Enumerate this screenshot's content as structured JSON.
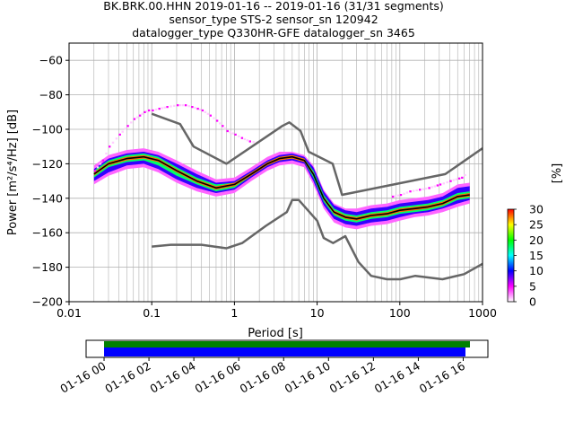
{
  "title_lines": [
    "BK.BRK.00.HHN   2019-01-16 -- 2019-01-16  (31/31 segments)",
    "sensor_type STS-2 sensor_sn 120942",
    "datalogger_type Q330HR-GFE datalogger_sn 3465"
  ],
  "chart_data": [
    {
      "type": "heatmap",
      "subtype": "probabilistic-power-spectral-density",
      "xlabel": "Period [s]",
      "ylabel": "Power [m²/s⁴/Hz] [dB]",
      "xscale": "log",
      "xlim": [
        0.01,
        1000
      ],
      "ylim": [
        -200,
        -50
      ],
      "xticks": [
        0.01,
        0.1,
        1,
        10,
        100,
        1000
      ],
      "xtick_labels": [
        "0.01",
        "0.1",
        "1",
        "10",
        "100",
        "1000"
      ],
      "yticks": [
        -200,
        -180,
        -160,
        -140,
        -120,
        -100,
        -80,
        -60
      ],
      "ytick_labels": [
        "−200",
        "−180",
        "−160",
        "−140",
        "−120",
        "−100",
        "−80",
        "−60"
      ],
      "grid": true,
      "colorbar": {
        "label": "[%]",
        "min": 0,
        "max": 30,
        "ticks": [
          0,
          5,
          10,
          15,
          20,
          25,
          30
        ],
        "colors": [
          "#ffffff",
          "#ff00ff",
          "#0000ff",
          "#00ffff",
          "#00ff00",
          "#ffff00",
          "#ff0000"
        ]
      },
      "series": [
        {
          "role": "high-noise-model",
          "color": "#666666",
          "x": [
            0.1,
            0.22,
            0.32,
            0.8,
            3.8,
            4.6,
            6.3,
            7.9,
            15.4,
            20,
            354.8,
            1000
          ],
          "y": [
            -91,
            -97,
            -110,
            -120,
            -98,
            -96,
            -101,
            -113,
            -120,
            -138,
            -126,
            -111
          ]
        },
        {
          "role": "low-noise-model",
          "color": "#666666",
          "x": [
            0.1,
            0.17,
            0.4,
            0.8,
            1.24,
            2.4,
            4.3,
            5,
            6,
            10,
            12,
            15.6,
            21.9,
            31.6,
            45,
            70,
            101,
            154,
            328,
            600,
            1000
          ],
          "y": [
            -168,
            -167,
            -167,
            -169,
            -166,
            -156,
            -148,
            -141,
            -141,
            -153,
            -163,
            -166,
            -162,
            -177,
            -185,
            -187,
            -187,
            -185,
            -187,
            -184,
            -178
          ]
        },
        {
          "role": "mode",
          "color": "#000000",
          "x": [
            0.02,
            0.03,
            0.05,
            0.08,
            0.12,
            0.2,
            0.35,
            0.6,
            1,
            1.6,
            2.5,
            3.5,
            5,
            7,
            9,
            12,
            16,
            22,
            30,
            45,
            70,
            100,
            150,
            220,
            330,
            500,
            700
          ],
          "y": [
            -126,
            -120,
            -117,
            -116,
            -118,
            -124,
            -130,
            -134,
            -132,
            -126,
            -120,
            -117,
            -116,
            -118,
            -126,
            -140,
            -148,
            -151,
            -152,
            -150,
            -149,
            -147,
            -146,
            -145,
            -143,
            -139,
            -138
          ]
        }
      ],
      "density_bands": [
        {
          "x": [
            0.02,
            0.03,
            0.05,
            0.08,
            0.12,
            0.2,
            0.35,
            0.6,
            1,
            1.6,
            2.5,
            3.5,
            5,
            7,
            9,
            12,
            16,
            22,
            30,
            45,
            70,
            100,
            150,
            220,
            330,
            500,
            700
          ],
          "low": [
            -132,
            -127,
            -123,
            -122,
            -125,
            -131,
            -136,
            -139,
            -137,
            -130,
            -124,
            -121,
            -120,
            -122,
            -132,
            -146,
            -154,
            -157,
            -158,
            -156,
            -155,
            -153,
            -151,
            -150,
            -148,
            -145,
            -143
          ],
          "high": [
            -121,
            -115,
            -112,
            -111,
            -113,
            -118,
            -124,
            -129,
            -128,
            -122,
            -116,
            -113,
            -113,
            -115,
            -121,
            -135,
            -143,
            -146,
            -146,
            -144,
            -143,
            -141,
            -140,
            -139,
            -137,
            -132,
            -131
          ],
          "percent": 3
        },
        {
          "x": [
            0.02,
            0.03,
            0.05,
            0.08,
            0.12,
            0.2,
            0.35,
            0.6,
            1,
            1.6,
            2.5,
            3.5,
            5,
            7,
            9,
            12,
            16,
            22,
            30,
            45,
            70,
            100,
            150,
            220,
            330,
            500,
            700
          ],
          "low": [
            -130,
            -125,
            -121,
            -120,
            -123,
            -129,
            -134,
            -137,
            -135,
            -128,
            -122,
            -119,
            -118,
            -120,
            -130,
            -144,
            -152,
            -155,
            -156,
            -154,
            -153,
            -151,
            -149,
            -148,
            -146,
            -143,
            -141
          ],
          "high": [
            -123,
            -117,
            -114,
            -113,
            -115,
            -120,
            -126,
            -131,
            -130,
            -124,
            -118,
            -115,
            -114,
            -116,
            -122,
            -136,
            -144,
            -147,
            -148,
            -146,
            -145,
            -143,
            -142,
            -141,
            -139,
            -134,
            -133
          ],
          "percent": 9
        },
        {
          "x": [
            0.02,
            0.03,
            0.05,
            0.08,
            0.12,
            0.2,
            0.35,
            0.6,
            1,
            1.6,
            2.5,
            3.5,
            5,
            7,
            9,
            12,
            16,
            22,
            30,
            45,
            70,
            100,
            150,
            220,
            330,
            500,
            700
          ],
          "low": [
            -128,
            -122,
            -119,
            -118,
            -121,
            -127,
            -132,
            -136,
            -134,
            -127,
            -121,
            -118,
            -117,
            -119,
            -128,
            -142,
            -150,
            -153,
            -154,
            -152,
            -151,
            -149,
            -148,
            -147,
            -145,
            -141,
            -140
          ],
          "high": [
            -124,
            -118,
            -115,
            -114,
            -116,
            -122,
            -128,
            -132,
            -131,
            -125,
            -119,
            -116,
            -115,
            -117,
            -124,
            -138,
            -146,
            -149,
            -150,
            -148,
            -147,
            -145,
            -144,
            -143,
            -141,
            -137,
            -136
          ],
          "percent": 18
        },
        {
          "x": [
            0.02,
            0.03,
            0.05,
            0.08,
            0.12,
            0.2,
            0.35,
            0.6,
            1,
            1.6,
            2.5,
            3.5,
            5,
            7,
            9,
            12,
            16,
            22,
            30,
            45,
            70,
            100,
            150,
            220,
            330,
            500,
            700
          ],
          "low": [
            -127,
            -121,
            -118,
            -117,
            -119,
            -125,
            -131,
            -135,
            -133,
            -127,
            -121,
            -118,
            -117,
            -119,
            -127,
            -141,
            -149,
            -152,
            -153,
            -151,
            -150,
            -148,
            -147,
            -146,
            -144,
            -140,
            -139
          ],
          "high": [
            -125,
            -119,
            -116,
            -115,
            -117,
            -123,
            -129,
            -133,
            -131,
            -125,
            -119,
            -116,
            -115,
            -117,
            -125,
            -139,
            -147,
            -150,
            -151,
            -149,
            -148,
            -146,
            -145,
            -144,
            -142,
            -138,
            -137
          ],
          "percent": 28
        }
      ],
      "scatter_fringe": {
        "x": [
          0.02,
          0.025,
          0.03,
          0.04,
          0.05,
          0.06,
          0.07,
          0.08,
          0.09,
          0.1,
          0.12,
          0.15,
          0.2,
          0.25,
          0.3,
          0.35,
          0.4,
          0.5,
          0.6,
          0.7,
          0.8,
          1,
          1.2,
          1.5,
          2
        ],
        "y": [
          -124,
          -118,
          -110,
          -103,
          -98,
          -94,
          -92,
          -90,
          -89,
          -89,
          -88,
          -87,
          -86,
          -86,
          -87,
          -88,
          -89,
          -92,
          -95,
          -98,
          -101,
          -103,
          -105,
          -107,
          -108
        ],
        "percent": 1
      },
      "upper_outliers": {
        "x": [
          80,
          100,
          130,
          170,
          220,
          300,
          400,
          550,
          650
        ],
        "y": [
          -139,
          -138,
          -136,
          -135,
          -134,
          -132,
          -130,
          -128,
          -125
        ],
        "percent": 1
      }
    },
    {
      "type": "timeline",
      "tick_labels": [
        "01-16 00",
        "01-16 02",
        "01-16 04",
        "01-16 06",
        "01-16 08",
        "01-16 10",
        "01-16 12",
        "01-16 14",
        "01-16 16"
      ],
      "tick_hours": [
        0,
        2,
        4,
        6,
        8,
        10,
        12,
        14,
        16
      ],
      "xlim_hours": [
        -0.8,
        17.1
      ],
      "bars": [
        {
          "role": "data-coverage",
          "color": "#008000",
          "start_hour": 0,
          "end_hour": 16.3
        },
        {
          "role": "psd-segments",
          "color": "#0000ff",
          "start_hour": 0,
          "end_hour": 16.1
        }
      ]
    }
  ]
}
